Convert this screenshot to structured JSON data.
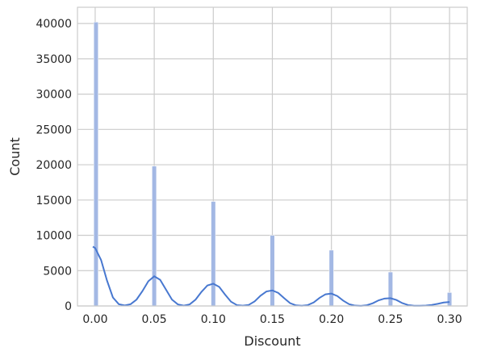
{
  "chart_data": {
    "type": "bar",
    "title": "",
    "xlabel": "Discount",
    "ylabel": "Count",
    "xlim": [
      -0.015,
      0.315
    ],
    "ylim": [
      0,
      42300
    ],
    "xticks": [
      0.0,
      0.05,
      0.1,
      0.15,
      0.2,
      0.25,
      0.3
    ],
    "xtick_labels": [
      "0.00",
      "0.05",
      "0.10",
      "0.15",
      "0.20",
      "0.25",
      "0.30"
    ],
    "yticks": [
      0,
      5000,
      10000,
      15000,
      20000,
      25000,
      30000,
      35000,
      40000
    ],
    "ytick_labels": [
      "0",
      "5000",
      "10000",
      "15000",
      "20000",
      "25000",
      "30000",
      "35000",
      "40000"
    ],
    "grid": true,
    "bar_color": "#a3b8e4",
    "kde_color": "#4878d0",
    "series": [
      {
        "x": [
          0.0,
          0.05,
          0.1,
          0.15,
          0.2,
          0.25,
          0.3
        ],
        "values": [
          40200,
          19800,
          14800,
          10000,
          7900,
          4800,
          1900
        ]
      }
    ],
    "kde_series": {
      "x": [
        -0.002,
        0.0,
        0.005,
        0.01,
        0.015,
        0.02,
        0.025,
        0.03,
        0.035,
        0.04,
        0.045,
        0.05,
        0.055,
        0.06,
        0.065,
        0.07,
        0.075,
        0.08,
        0.085,
        0.09,
        0.095,
        0.1,
        0.105,
        0.11,
        0.115,
        0.12,
        0.125,
        0.13,
        0.135,
        0.14,
        0.145,
        0.15,
        0.155,
        0.16,
        0.165,
        0.17,
        0.175,
        0.18,
        0.185,
        0.19,
        0.195,
        0.2,
        0.205,
        0.21,
        0.215,
        0.22,
        0.225,
        0.23,
        0.235,
        0.24,
        0.245,
        0.25,
        0.255,
        0.26,
        0.265,
        0.27,
        0.275,
        0.28,
        0.285,
        0.29,
        0.295,
        0.3
      ],
      "values": [
        8400,
        8200,
        6500,
        3600,
        1200,
        250,
        80,
        250,
        900,
        2100,
        3500,
        4200,
        3700,
        2300,
        900,
        220,
        50,
        220,
        900,
        2000,
        2900,
        3150,
        2700,
        1600,
        600,
        120,
        40,
        150,
        650,
        1450,
        2050,
        2200,
        1850,
        1100,
        400,
        80,
        30,
        120,
        500,
        1150,
        1650,
        1750,
        1400,
        750,
        250,
        50,
        20,
        100,
        380,
        800,
        1050,
        1100,
        850,
        400,
        120,
        30,
        30,
        60,
        150,
        300,
        480,
        560
      ]
    }
  }
}
